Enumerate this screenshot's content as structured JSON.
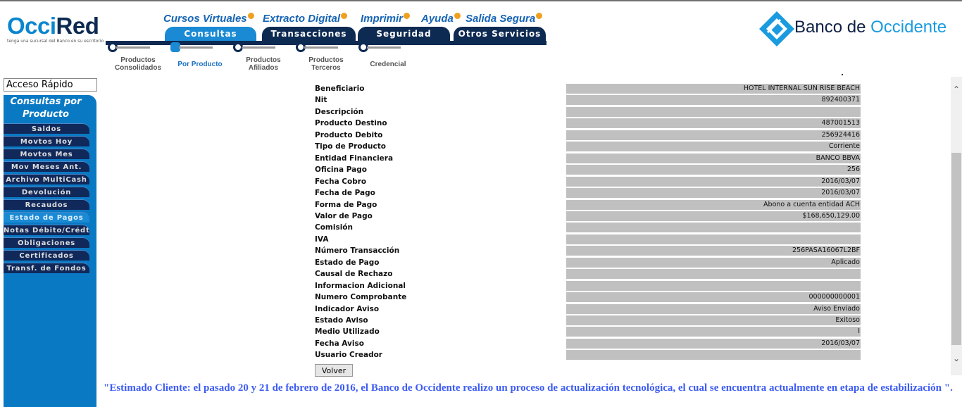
{
  "header": {
    "logo": {
      "part1": "Occi",
      "part2": "Red",
      "tagline": "tenga una sucursal del Banco en su escritorio"
    },
    "top_links": [
      "Cursos Virtuales",
      "Extracto Digital",
      "Imprimir",
      "Ayuda",
      "Salida Segura"
    ],
    "tabs": [
      {
        "label": "Consultas",
        "active": true
      },
      {
        "label": "Transacciones"
      },
      {
        "label": "Seguridad"
      },
      {
        "label": "Otros Servicios"
      }
    ],
    "steps": [
      {
        "label": "Productos Consolidados"
      },
      {
        "label": "Por Producto",
        "active": true
      },
      {
        "label": "Productos Afiliados"
      },
      {
        "label": "Productos Terceros"
      },
      {
        "label": "Credencial"
      }
    ],
    "bank_logo": {
      "part1": "Banco de ",
      "part2": "Occidente"
    }
  },
  "sidebar": {
    "quick_access": "Acceso Rápido",
    "title": "Consultas por Producto",
    "items": [
      "Saldos",
      "Movtos Hoy",
      "Movtos Mes",
      "Mov Meses Ant.",
      "Archivo MultiCash",
      "Devolución",
      "Recaudos",
      "Estado de Pagos",
      "Notas Débito/Crédto",
      "Obligaciones",
      "Certificados",
      "Transf. de Fondos"
    ],
    "active_item": "Estado de Pagos"
  },
  "detail": [
    {
      "label": "Beneficiario",
      "value": "HOTEL INTERNAL SUN RISE BEACH"
    },
    {
      "label": "Nit",
      "value": "892400371"
    },
    {
      "label": "Descripción",
      "value": ""
    },
    {
      "label": "Producto Destino",
      "value": "487001513"
    },
    {
      "label": "Producto Debito",
      "value": "256924416"
    },
    {
      "label": "Tipo de Producto",
      "value": "Corriente"
    },
    {
      "label": "Entidad Financiera",
      "value": "BANCO BBVA"
    },
    {
      "label": "Oficina Pago",
      "value": "256"
    },
    {
      "label": "Fecha Cobro",
      "value": "2016/03/07"
    },
    {
      "label": "Fecha de Pago",
      "value": "2016/03/07"
    },
    {
      "label": "Forma de Pago",
      "value": "Abono a cuenta entidad ACH"
    },
    {
      "label": "Valor de Pago",
      "value": "$168,650,129.00"
    },
    {
      "label": "Comisión",
      "value": ""
    },
    {
      "label": "IVA",
      "value": ""
    },
    {
      "label": "Número Transacción",
      "value": "256PASA16067L2BF"
    },
    {
      "label": "Estado de Pago",
      "value": "Aplicado"
    },
    {
      "label": "Causal de Rechazo",
      "value": ""
    },
    {
      "label": "Informacion Adicional",
      "value": ""
    },
    {
      "label": "Numero Comprobante",
      "value": "000000000001"
    },
    {
      "label": "Indicador Aviso",
      "value": "Aviso Enviado"
    },
    {
      "label": "Estado Aviso",
      "value": "Exitoso"
    },
    {
      "label": "Medio Utilizado",
      "value": "I"
    },
    {
      "label": "Fecha Aviso",
      "value": "2016/03/07"
    },
    {
      "label": "Usuario Creador",
      "value": ""
    }
  ],
  "back_button": "Volver",
  "notice": "\"Estimado Cliente: el pasado 20 y 21 de febrero de 2016, el Banco de Occidente realizo un proceso de actualización tecnológica, el cual se encuentra actualmente en etapa de estabilización \".",
  "colors": {
    "brand_blue": "#0a79c4",
    "navy": "#0d2a52",
    "value_cell": "#c0c0c0",
    "notice": "#3d5cf5"
  }
}
